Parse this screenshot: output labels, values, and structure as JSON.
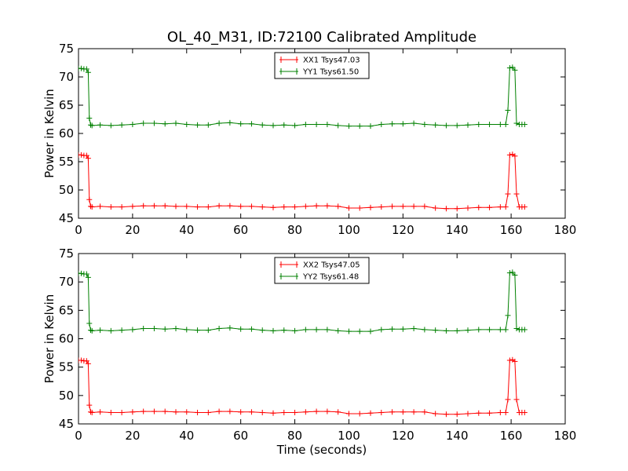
{
  "figure": {
    "title": "OL_40_M31, ID:72100 Calibrated Amplitude"
  },
  "chart_data": [
    {
      "type": "line",
      "title": "OL_40_M31, ID:72100 Calibrated Amplitude",
      "xlabel": "",
      "ylabel": "Power in Kelvin",
      "xlim": [
        0,
        180
      ],
      "ylim": [
        45,
        75
      ],
      "xticks": [
        0,
        20,
        40,
        60,
        80,
        100,
        120,
        140,
        160,
        180
      ],
      "yticks": [
        45,
        50,
        55,
        60,
        65,
        70,
        75
      ],
      "grid": false,
      "legend": "top-center",
      "series": [
        {
          "name": "XX1 Tsys47.03",
          "color": "#ff0000",
          "marker": "+",
          "x": [
            0,
            1,
            2,
            3,
            3.6,
            4.0,
            4.5,
            5,
            8,
            12,
            16,
            20,
            24,
            28,
            32,
            36,
            40,
            44,
            48,
            52,
            56,
            60,
            64,
            68,
            72,
            76,
            80,
            84,
            88,
            92,
            96,
            100,
            104,
            108,
            112,
            116,
            120,
            124,
            128,
            132,
            136,
            140,
            144,
            148,
            152,
            156,
            158,
            158.8,
            159.5,
            160.5,
            161.4,
            162,
            163,
            164,
            165
          ],
          "y": [
            56.2,
            56.2,
            56.1,
            56.1,
            55.6,
            48.3,
            47.1,
            47.0,
            47.1,
            47.0,
            47.0,
            47.1,
            47.2,
            47.2,
            47.2,
            47.1,
            47.1,
            47.0,
            47.0,
            47.2,
            47.2,
            47.1,
            47.1,
            47.0,
            46.9,
            47.0,
            47.0,
            47.1,
            47.2,
            47.2,
            47.1,
            46.8,
            46.8,
            46.9,
            47.0,
            47.1,
            47.1,
            47.1,
            47.1,
            46.8,
            46.7,
            46.7,
            46.8,
            46.9,
            46.9,
            47.0,
            47.0,
            49.3,
            56.2,
            56.3,
            56.0,
            49.3,
            47.0,
            47.0,
            47.0
          ]
        },
        {
          "name": "YY1 Tsys61.50",
          "color": "#008000",
          "marker": "+",
          "x": [
            0,
            1,
            2,
            3,
            3.6,
            4.0,
            4.5,
            5,
            8,
            12,
            16,
            20,
            24,
            28,
            32,
            36,
            40,
            44,
            48,
            52,
            56,
            60,
            64,
            68,
            72,
            76,
            80,
            84,
            88,
            92,
            96,
            100,
            104,
            108,
            112,
            116,
            120,
            124,
            128,
            132,
            136,
            140,
            144,
            148,
            152,
            156,
            158,
            158.8,
            159.5,
            160.5,
            161.4,
            162,
            163,
            164,
            165
          ],
          "y": [
            71.5,
            71.5,
            71.4,
            71.4,
            70.8,
            62.7,
            61.5,
            61.4,
            61.5,
            61.4,
            61.5,
            61.6,
            61.8,
            61.8,
            61.7,
            61.8,
            61.6,
            61.5,
            61.5,
            61.8,
            61.9,
            61.7,
            61.7,
            61.5,
            61.4,
            61.5,
            61.4,
            61.6,
            61.6,
            61.6,
            61.4,
            61.3,
            61.3,
            61.3,
            61.6,
            61.7,
            61.7,
            61.8,
            61.6,
            61.5,
            61.4,
            61.4,
            61.5,
            61.6,
            61.6,
            61.6,
            61.6,
            64.1,
            71.6,
            71.7,
            71.2,
            61.8,
            61.6,
            61.6,
            61.6
          ]
        }
      ]
    },
    {
      "type": "line",
      "title": "",
      "xlabel": "Time (seconds)",
      "ylabel": "Power in Kelvin",
      "xlim": [
        0,
        180
      ],
      "ylim": [
        45,
        75
      ],
      "xticks": [
        0,
        20,
        40,
        60,
        80,
        100,
        120,
        140,
        160,
        180
      ],
      "yticks": [
        45,
        50,
        55,
        60,
        65,
        70,
        75
      ],
      "grid": false,
      "legend": "top-center",
      "series": [
        {
          "name": "XX2 Tsys47.05",
          "color": "#ff0000",
          "marker": "+",
          "x": [
            0,
            1,
            2,
            3,
            3.6,
            4.0,
            4.5,
            5,
            8,
            12,
            16,
            20,
            24,
            28,
            32,
            36,
            40,
            44,
            48,
            52,
            56,
            60,
            64,
            68,
            72,
            76,
            80,
            84,
            88,
            92,
            96,
            100,
            104,
            108,
            112,
            116,
            120,
            124,
            128,
            132,
            136,
            140,
            144,
            148,
            152,
            156,
            158,
            158.8,
            159.5,
            160.5,
            161.4,
            162,
            163,
            164,
            165
          ],
          "y": [
            56.2,
            56.2,
            56.1,
            56.1,
            55.6,
            48.3,
            47.1,
            47.0,
            47.1,
            47.0,
            47.0,
            47.1,
            47.2,
            47.2,
            47.2,
            47.1,
            47.1,
            47.0,
            47.0,
            47.2,
            47.2,
            47.1,
            47.1,
            47.0,
            46.9,
            47.0,
            47.0,
            47.1,
            47.2,
            47.2,
            47.1,
            46.8,
            46.8,
            46.9,
            47.0,
            47.1,
            47.1,
            47.1,
            47.1,
            46.8,
            46.7,
            46.7,
            46.8,
            46.9,
            46.9,
            47.0,
            47.0,
            49.3,
            56.2,
            56.3,
            56.0,
            49.3,
            47.0,
            47.0,
            47.0
          ]
        },
        {
          "name": "YY2 Tsys61.48",
          "color": "#008000",
          "marker": "+",
          "x": [
            0,
            1,
            2,
            3,
            3.6,
            4.0,
            4.5,
            5,
            8,
            12,
            16,
            20,
            24,
            28,
            32,
            36,
            40,
            44,
            48,
            52,
            56,
            60,
            64,
            68,
            72,
            76,
            80,
            84,
            88,
            92,
            96,
            100,
            104,
            108,
            112,
            116,
            120,
            124,
            128,
            132,
            136,
            140,
            144,
            148,
            152,
            156,
            158,
            158.8,
            159.5,
            160.5,
            161.4,
            162,
            163,
            164,
            165
          ],
          "y": [
            71.5,
            71.5,
            71.4,
            71.4,
            70.8,
            62.7,
            61.5,
            61.4,
            61.5,
            61.4,
            61.5,
            61.6,
            61.8,
            61.8,
            61.7,
            61.8,
            61.6,
            61.5,
            61.5,
            61.8,
            61.9,
            61.7,
            61.7,
            61.5,
            61.4,
            61.5,
            61.4,
            61.6,
            61.6,
            61.6,
            61.4,
            61.3,
            61.3,
            61.3,
            61.6,
            61.7,
            61.7,
            61.8,
            61.6,
            61.5,
            61.4,
            61.4,
            61.5,
            61.6,
            61.6,
            61.6,
            61.6,
            64.1,
            71.6,
            71.7,
            71.2,
            61.8,
            61.6,
            61.6,
            61.6
          ]
        }
      ]
    }
  ]
}
